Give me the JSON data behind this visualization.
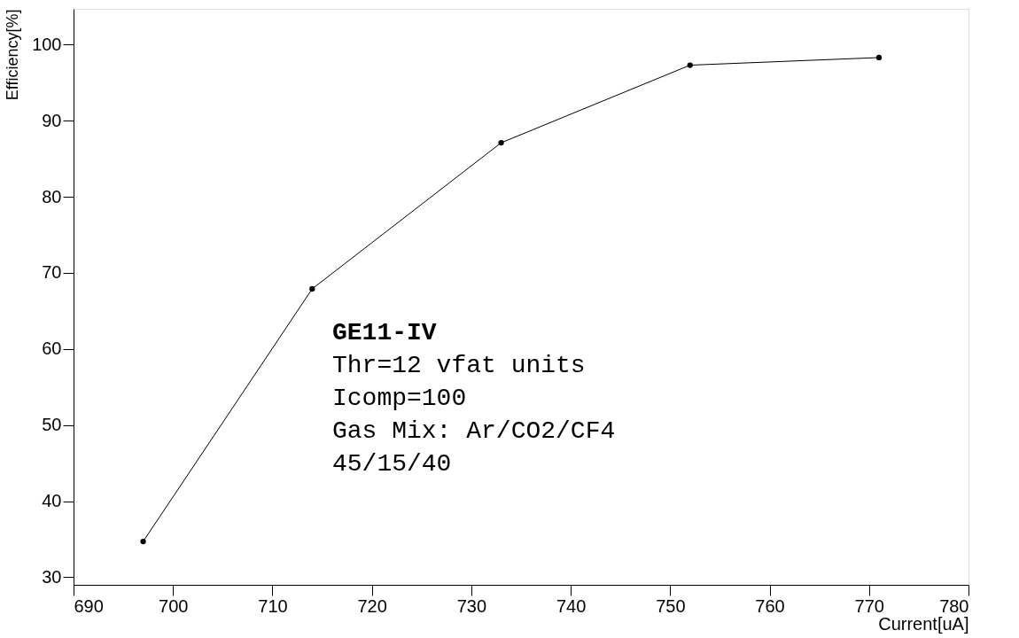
{
  "chart_data": {
    "type": "line",
    "xlabel": "Current[uA]",
    "ylabel": "Efficiency[%]",
    "x": [
      697,
      714,
      733,
      752,
      771
    ],
    "series": [
      {
        "color": "#000000",
        "values": [
          34.7,
          67.9,
          87.1,
          97.3,
          98.3
        ]
      }
    ],
    "xlim": [
      690,
      780
    ],
    "xticks": [
      690,
      700,
      710,
      720,
      730,
      740,
      750,
      760,
      770,
      780
    ],
    "ylim": [
      29,
      104.7
    ],
    "yticks": [
      30,
      40,
      50,
      60,
      70,
      80,
      90,
      100
    ],
    "marker": "circle",
    "line_style": "solid",
    "grid": false,
    "annotations": [
      "GE11-IV",
      "Thr=12 vfat units",
      "Icomp=100",
      "Gas Mix: Ar/CO2/CF4",
      "45/15/40"
    ]
  }
}
